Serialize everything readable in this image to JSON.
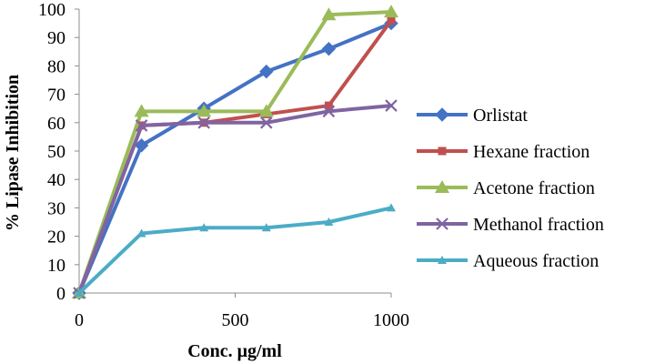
{
  "chart_data": {
    "type": "line",
    "title": "",
    "xlabel": "Conc. μg/ml",
    "ylabel": "% Lipase Inhibition",
    "xlim": [
      0,
      1000
    ],
    "ylim": [
      0,
      100
    ],
    "x_ticks": [
      0,
      500,
      1000
    ],
    "y_ticks": [
      0,
      10,
      20,
      30,
      40,
      50,
      60,
      70,
      80,
      90,
      100
    ],
    "grid": false,
    "legend_position": "right",
    "x": [
      0,
      200,
      400,
      600,
      800,
      1000
    ],
    "series": [
      {
        "name": "Orlistat",
        "color": "#4472C4",
        "marker": "diamond",
        "values": [
          0,
          52,
          65,
          78,
          86,
          95
        ]
      },
      {
        "name": "Hexane fraction",
        "color": "#C0504D",
        "marker": "square",
        "values": [
          0,
          59,
          60,
          63,
          66,
          96
        ]
      },
      {
        "name": "Acetone fraction",
        "color": "#9BBB59",
        "marker": "triangle",
        "values": [
          0,
          64,
          64,
          64,
          98,
          99
        ]
      },
      {
        "name": "Methanol fraction",
        "color": "#8064A2",
        "marker": "x",
        "values": [
          0,
          59,
          60,
          60,
          64,
          66
        ]
      },
      {
        "name": "Aqueous fraction",
        "color": "#4BACC6",
        "marker": "triangle-small",
        "values": [
          0,
          21,
          23,
          23,
          25,
          30
        ]
      }
    ]
  }
}
